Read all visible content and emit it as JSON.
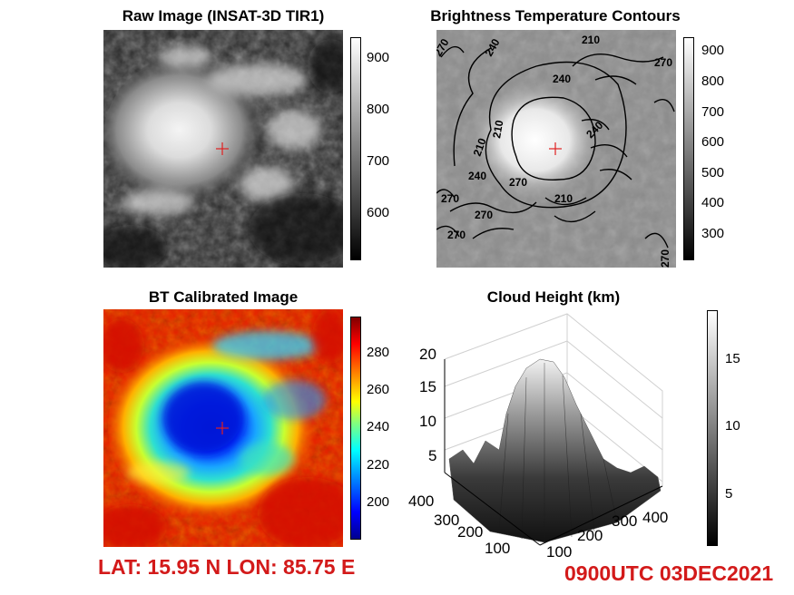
{
  "panels": {
    "raw": {
      "title": "Raw Image (INSAT-3D TIR1)",
      "colorbar_ticks": [
        "900",
        "800",
        "700",
        "600"
      ],
      "colormap": "gray"
    },
    "contours": {
      "title": "Brightness Temperature Contours",
      "colorbar_ticks": [
        "900",
        "800",
        "700",
        "600",
        "500",
        "400",
        "300"
      ],
      "contour_labels": [
        "270",
        "240",
        "210",
        "240",
        "270",
        "210",
        "210",
        "240",
        "270",
        "270",
        "270",
        "210",
        "240",
        "270",
        "270"
      ],
      "colormap": "gray"
    },
    "bt": {
      "title": "BT Calibrated Image",
      "colorbar_ticks": [
        "280",
        "260",
        "240",
        "220",
        "200"
      ],
      "colormap": "jet"
    },
    "height": {
      "title": "Cloud Height (km)",
      "colorbar_ticks": [
        "15",
        "10",
        "5"
      ],
      "z_ticks": [
        "20",
        "15",
        "10",
        "5"
      ],
      "y_ticks": [
        "400",
        "300",
        "200",
        "100"
      ],
      "x_ticks": [
        "100",
        "200",
        "300",
        "400"
      ],
      "colormap": "gray"
    }
  },
  "center_marker": "red-plus-icon",
  "footer": {
    "location": "LAT: 15.95 N  LON: 85.75 E",
    "timestamp": "0900UTC 03DEC2021"
  },
  "colors": {
    "accent_red": "#d31a1a",
    "marker_red": "#e02020"
  }
}
